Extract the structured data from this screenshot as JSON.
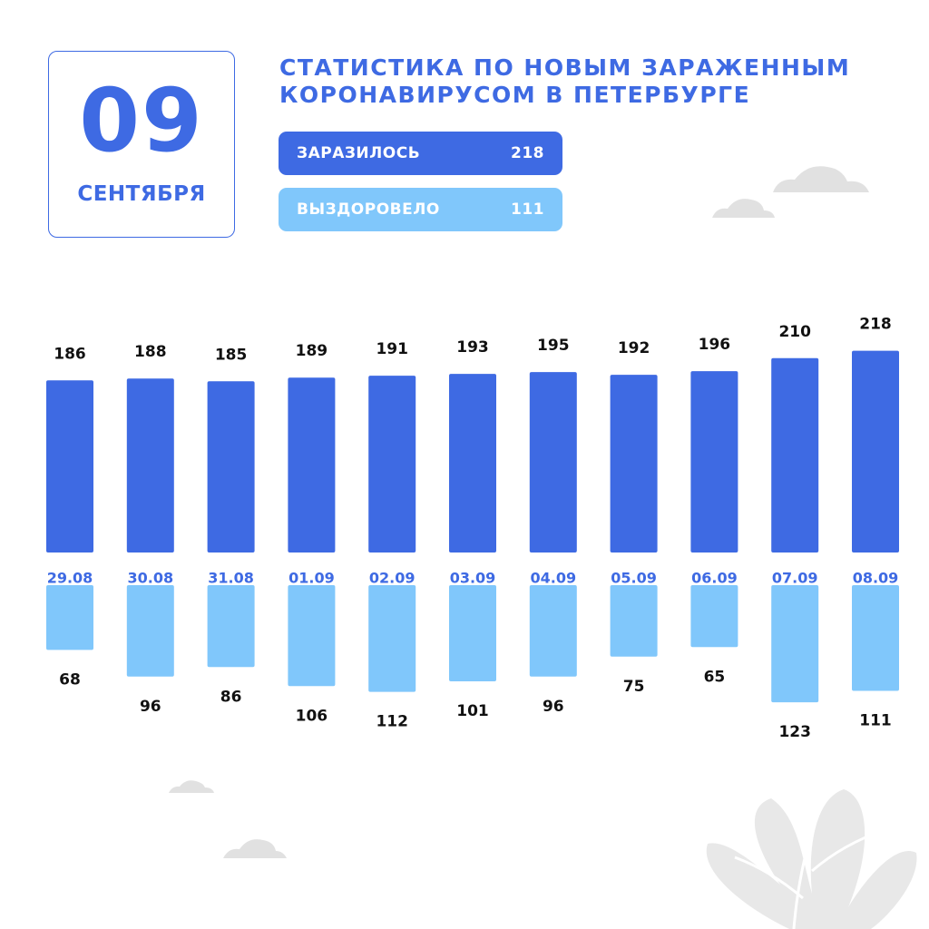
{
  "date": {
    "day": "09",
    "month": "СЕНТЯБРЯ"
  },
  "title_lines": [
    "СТАТИСТИКА ПО НОВЫМ ЗАРАЖЕННЫМ",
    "КОРОНАВИРУСОМ В ПЕТЕРБУРГЕ"
  ],
  "summary": {
    "infected_label": "ЗАРАЗИЛОСЬ",
    "infected_value": "218",
    "recovered_label": "ВЫЗДОРОВЕЛО",
    "recovered_value": "111"
  },
  "colors": {
    "infected": "#3e6ae3",
    "recovered": "#80c7fb",
    "text_dark": "#111111",
    "decoration": "#e1e1e1"
  },
  "chart_data": {
    "type": "bar",
    "categories": [
      "29.08",
      "30.08",
      "31.08",
      "01.09",
      "02.09",
      "03.09",
      "04.09",
      "05.09",
      "06.09",
      "07.09",
      "08.09"
    ],
    "series": [
      {
        "name": "ЗАРАЗИЛОСЬ",
        "values": [
          186,
          188,
          185,
          189,
          191,
          193,
          195,
          192,
          196,
          210,
          218
        ]
      },
      {
        "name": "ВЫЗДОРОВЕЛО",
        "values": [
          68,
          96,
          86,
          106,
          112,
          101,
          96,
          75,
          65,
          123,
          111
        ]
      }
    ],
    "layout": "diverging",
    "grid": false,
    "legend": "none"
  }
}
